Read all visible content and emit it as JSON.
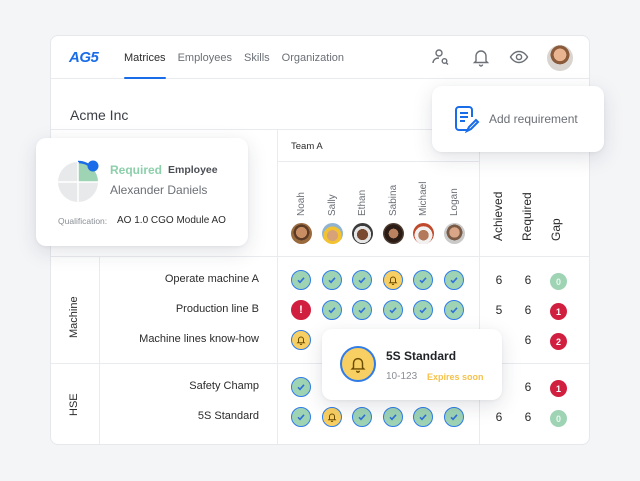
{
  "header": {
    "logo": "AG5",
    "nav": [
      {
        "label": "Matrices",
        "active": true
      },
      {
        "label": "Employees",
        "active": false
      },
      {
        "label": "Skills",
        "active": false
      },
      {
        "label": "Organization",
        "active": false
      }
    ],
    "icons": [
      "user-search-icon",
      "bell-icon",
      "eye-icon",
      "user-avatar"
    ]
  },
  "company": "Acme Inc",
  "team": {
    "label": "Team A",
    "members": [
      "Noah",
      "Sally",
      "Ethan",
      "Sabina",
      "Michael",
      "Logan"
    ]
  },
  "stats_headers": [
    "Achieved",
    "Required",
    "Gap"
  ],
  "groups": [
    {
      "label": "Machine",
      "skills": [
        {
          "name": "Operate machine A",
          "cells": [
            "ok",
            "ok",
            "ok",
            "warn",
            "ok",
            "ok"
          ],
          "achieved": "6",
          "required": "6",
          "gap": "0"
        },
        {
          "name": "Production line B",
          "cells": [
            "bad",
            "ok",
            "ok",
            "ok",
            "ok",
            "ok"
          ],
          "achieved": "5",
          "required": "6",
          "gap": "1"
        },
        {
          "name": "Machine lines know-how",
          "cells": [
            "warn",
            "",
            "",
            "",
            "",
            ""
          ],
          "achieved": "",
          "required": "6",
          "gap": "2"
        }
      ]
    },
    {
      "label": "HSE",
      "skills": [
        {
          "name": "Safety Champ",
          "cells": [
            "ok",
            "",
            "",
            "",
            "",
            ""
          ],
          "achieved": "",
          "required": "6",
          "gap": "1"
        },
        {
          "name": "5S Standard",
          "cells": [
            "ok",
            "warn",
            "ok",
            "ok",
            "ok",
            "ok"
          ],
          "achieved": "6",
          "required": "6",
          "gap": "0"
        }
      ]
    }
  ],
  "employee_card": {
    "status": "Required",
    "type": "Employee",
    "name": "Alexander Daniels",
    "qualification_label": "Qualification:",
    "qualification_value": "AO 1.0 CGO Module AO"
  },
  "add_requirement": {
    "label": "Add requirement"
  },
  "standard_popup": {
    "title": "5S Standard",
    "code": "10-123",
    "status": "Expires soon"
  },
  "colors": {
    "accent": "#1a6de8",
    "achieved": "#9ed3b4",
    "warning": "#f8cf62",
    "danger": "#d11f3f"
  }
}
